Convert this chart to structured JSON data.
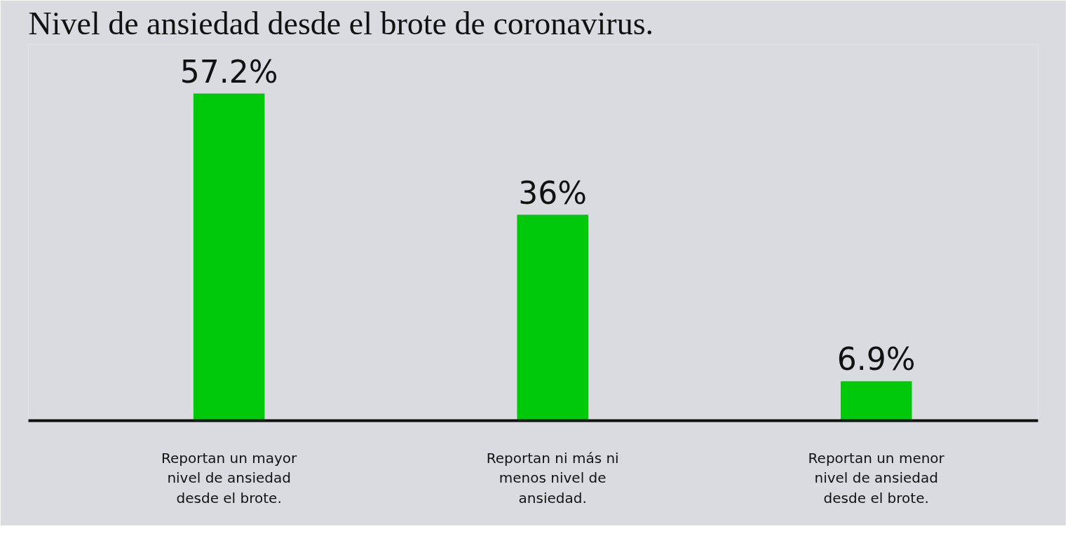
{
  "chart_data": {
    "type": "bar",
    "title": "Nivel de ansiedad desde el brote de coronavirus.",
    "categories": [
      "Reportan un mayor nivel de ansiedad desde el brote.",
      "Reportan ni más ni menos nivel de ansiedad.",
      "Reportan un menor nivel de ansiedad desde el brote."
    ],
    "values": [
      57.2,
      36,
      6.9
    ],
    "value_labels": [
      "57.2%",
      "36%",
      "6.9%"
    ],
    "color": "#00c80a",
    "grid": false,
    "tick_labels": "x"
  }
}
